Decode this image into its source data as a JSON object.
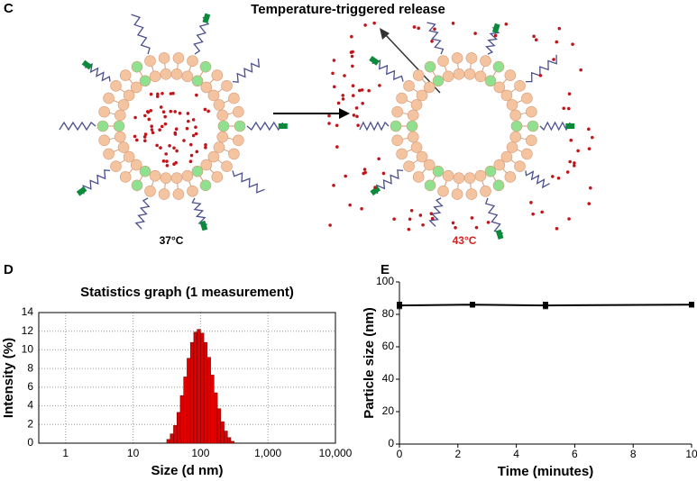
{
  "panels": {
    "c_label": "C",
    "d_label": "D",
    "e_label": "E",
    "title": "Temperature-triggered release",
    "left_temp": "37°C",
    "right_temp": "43°C"
  },
  "chart_data": [
    {
      "type": "histogram",
      "title": "Statistics graph (1 measurement)",
      "x_label": "Size (d nm)",
      "y_label": "Intensity (%)",
      "xscale": "log",
      "grid": true,
      "color": "#e00000",
      "bins": [
        31.6,
        35.5,
        39.8,
        44.7,
        50.1,
        56.2,
        63.1,
        70.8,
        79.4,
        89.1,
        100,
        112.2,
        125.9,
        141.3,
        158.5,
        177.8,
        199.5,
        223.9,
        251.2,
        281.8,
        316.2
      ],
      "counts": [
        0.4,
        1.0,
        1.9,
        3.3,
        5.1,
        7.1,
        9.1,
        10.8,
        11.9,
        12.2,
        11.8,
        10.8,
        9.2,
        7.3,
        5.4,
        3.7,
        2.3,
        1.3,
        0.6,
        0.2
      ],
      "xlim": [
        0.4,
        10000
      ],
      "xticks": [
        1,
        10,
        100,
        {
          "value": 1000,
          "label": "1,000"
        },
        {
          "value": 10000,
          "label": "10,000"
        }
      ],
      "ylim": [
        0,
        14
      ],
      "yticks": [
        0,
        2,
        4,
        6,
        8,
        10,
        12,
        14
      ]
    },
    {
      "type": "line",
      "x_label": "Time (minutes)",
      "y_label": "Particle size (nm)",
      "grid": false,
      "color": "#000000",
      "x": [
        0,
        2.5,
        5,
        10
      ],
      "values": [
        85.5,
        86,
        85.5,
        86
      ],
      "errors": [
        2,
        1.5,
        2,
        1.5
      ],
      "xlim": [
        0,
        10
      ],
      "xticks": [
        0,
        2,
        4,
        6,
        8,
        10
      ],
      "ylim": [
        0,
        100
      ],
      "yticks": [
        0,
        20,
        40,
        60,
        80,
        100
      ]
    }
  ]
}
